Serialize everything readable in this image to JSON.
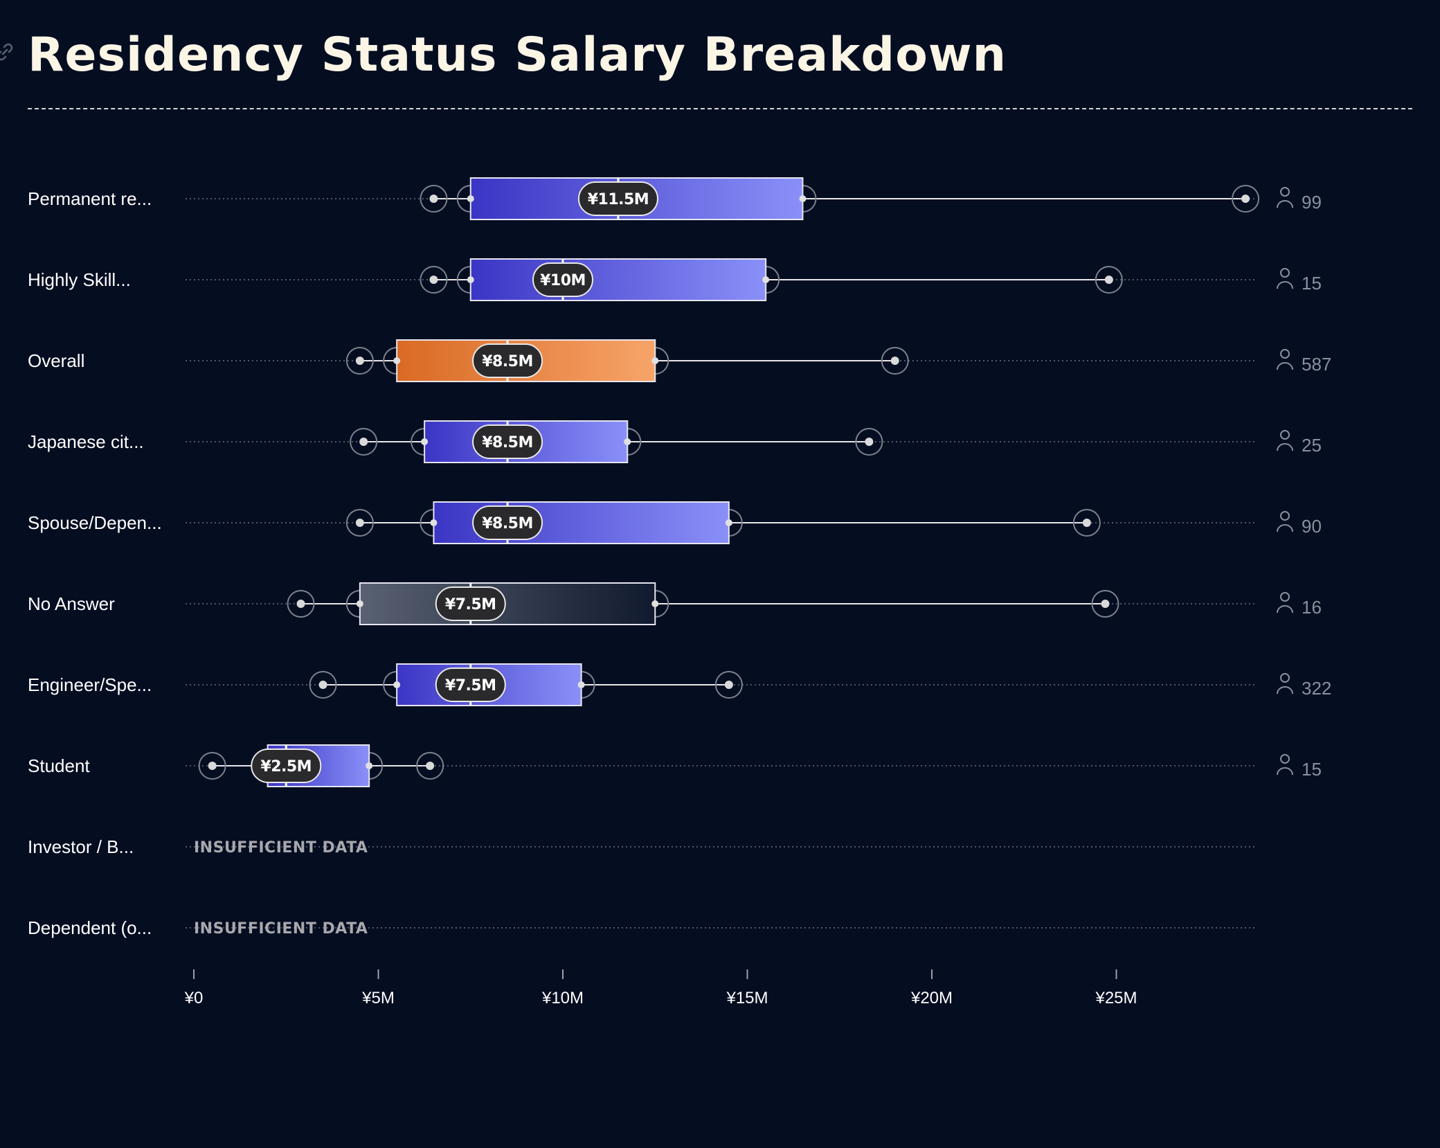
{
  "title": "Residency Status Salary Breakdown",
  "chart_data": {
    "type": "boxplot",
    "title": "Residency Status Salary Breakdown",
    "x_ticks": [
      "¥0",
      "¥5M",
      "¥10M",
      "¥15M",
      "¥20M",
      "¥25M"
    ],
    "x_tick_values": [
      0,
      5,
      10,
      15,
      20,
      25
    ],
    "x_unit": "¥M",
    "xlim": [
      0,
      29
    ],
    "insufficient_label": "INSUFFICIENT DATA",
    "colors": {
      "box_start": "#3b35c4",
      "box_end": "#8a90f8",
      "overall_start": "#d96a24",
      "overall_end": "#f7a469",
      "noanswer_start": "#596172",
      "noanswer_end": "#111a2e",
      "background": "#050d21"
    },
    "rows": [
      {
        "category": "Permanent re...",
        "min": 6.5,
        "q1": 7.5,
        "median": 11.5,
        "q3": 16.5,
        "max": 28.5,
        "median_label": "¥11.5M",
        "count": "99",
        "style": "default"
      },
      {
        "category": "Highly Skill...",
        "min": 6.5,
        "q1": 7.5,
        "median": 10,
        "q3": 15.5,
        "max": 24.8,
        "median_label": "¥10M",
        "count": "15",
        "style": "default"
      },
      {
        "category": "Overall",
        "min": 4.5,
        "q1": 5.5,
        "median": 8.5,
        "q3": 12.5,
        "max": 19,
        "median_label": "¥8.5M",
        "count": "587",
        "style": "overall"
      },
      {
        "category": "Japanese cit...",
        "min": 4.6,
        "q1": 6.25,
        "median": 8.5,
        "q3": 11.75,
        "max": 18.3,
        "median_label": "¥8.5M",
        "count": "25",
        "style": "default"
      },
      {
        "category": "Spouse/Depen...",
        "min": 4.5,
        "q1": 6.5,
        "median": 8.5,
        "q3": 14.5,
        "max": 24.2,
        "median_label": "¥8.5M",
        "count": "90",
        "style": "default"
      },
      {
        "category": "No Answer",
        "min": 2.9,
        "q1": 4.5,
        "median": 7.5,
        "q3": 12.5,
        "max": 24.7,
        "median_label": "¥7.5M",
        "count": "16",
        "style": "noanswer"
      },
      {
        "category": "Engineer/Spe...",
        "min": 3.5,
        "q1": 5.5,
        "median": 7.5,
        "q3": 10.5,
        "max": 14.5,
        "median_label": "¥7.5M",
        "count": "322",
        "style": "default"
      },
      {
        "category": "Student",
        "min": 0.5,
        "q1": 2,
        "median": 2.5,
        "q3": 4.75,
        "max": 6.4,
        "median_label": "¥2.5M",
        "count": "15",
        "style": "default"
      },
      {
        "category": "Investor / B...",
        "insufficient": true
      },
      {
        "category": "Dependent (o...",
        "insufficient": true
      }
    ]
  }
}
